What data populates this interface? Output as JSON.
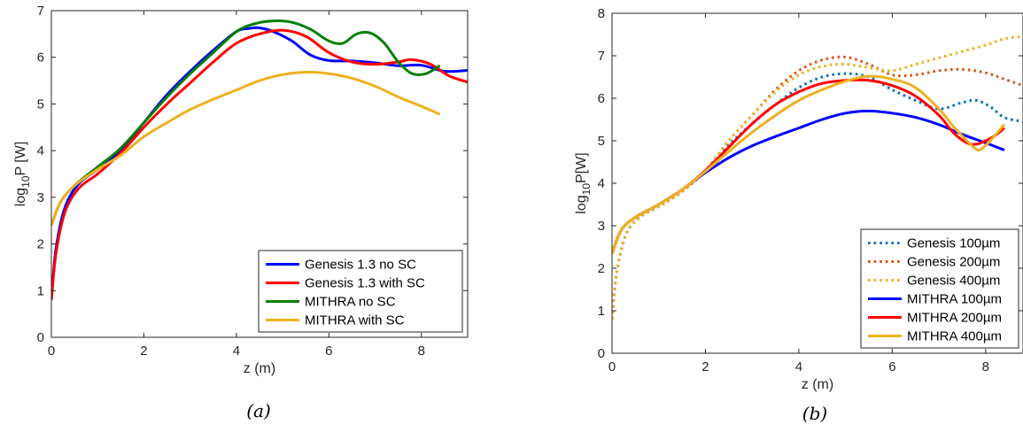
{
  "chart_data": [
    {
      "type": "line",
      "caption": "(a)",
      "xlabel": "z (m)",
      "ylabel_main": "log",
      "ylabel_sub": "10",
      "ylabel_tail": "P [W]",
      "xlim": [
        0,
        9
      ],
      "ylim": [
        0,
        7
      ],
      "xticks": [
        0,
        2,
        4,
        6,
        8
      ],
      "yticks": [
        0,
        1,
        2,
        3,
        4,
        5,
        6,
        7
      ],
      "legend_position": "bottom-right",
      "series": [
        {
          "name": "Genesis 1.3 no SC",
          "color": "#0000ff",
          "dash": "solid",
          "x": [
            0,
            0.1,
            0.3,
            0.6,
            1.0,
            1.5,
            2.0,
            2.5,
            3.0,
            3.5,
            4.0,
            4.3,
            4.5,
            4.8,
            5.2,
            5.6,
            6.0,
            6.5,
            7.0,
            7.5,
            8.0,
            8.5,
            9.0
          ],
          "y": [
            0.8,
            1.9,
            2.8,
            3.3,
            3.6,
            4.0,
            4.6,
            5.2,
            5.7,
            6.15,
            6.55,
            6.62,
            6.63,
            6.55,
            6.35,
            6.05,
            5.93,
            5.92,
            5.88,
            5.82,
            5.83,
            5.7,
            5.72
          ]
        },
        {
          "name": "Genesis 1.3 with SC",
          "color": "#ff0000",
          "dash": "solid",
          "x": [
            0,
            0.1,
            0.3,
            0.6,
            1.0,
            1.5,
            2.0,
            2.5,
            3.0,
            3.5,
            4.0,
            4.5,
            5.0,
            5.5,
            6.0,
            6.5,
            7.0,
            7.5,
            7.8,
            8.2,
            8.6,
            9.0
          ],
          "y": [
            0.8,
            1.8,
            2.7,
            3.2,
            3.5,
            3.95,
            4.5,
            5.0,
            5.45,
            5.9,
            6.3,
            6.5,
            6.58,
            6.45,
            6.1,
            5.9,
            5.85,
            5.9,
            5.95,
            5.85,
            5.6,
            5.47
          ]
        },
        {
          "name": "MITHRA no SC",
          "color": "#008000",
          "dash": "solid",
          "x": [
            0,
            0.2,
            0.5,
            1.0,
            1.5,
            2.0,
            2.5,
            3.0,
            3.5,
            4.0,
            4.4,
            4.8,
            5.2,
            5.6,
            6.0,
            6.3,
            6.6,
            6.9,
            7.2,
            7.5,
            7.8,
            8.1,
            8.4
          ],
          "y": [
            2.4,
            2.9,
            3.25,
            3.65,
            4.05,
            4.6,
            5.15,
            5.65,
            6.1,
            6.55,
            6.72,
            6.78,
            6.75,
            6.6,
            6.35,
            6.3,
            6.5,
            6.52,
            6.3,
            5.9,
            5.65,
            5.65,
            5.82
          ]
        },
        {
          "name": "MITHRA with SC",
          "color": "#edb120",
          "dash": "solid",
          "x": [
            0,
            0.2,
            0.5,
            1.0,
            1.5,
            2.0,
            2.5,
            3.0,
            3.5,
            4.0,
            4.5,
            5.0,
            5.5,
            6.0,
            6.5,
            7.0,
            7.5,
            8.0,
            8.4
          ],
          "y": [
            2.4,
            2.9,
            3.25,
            3.6,
            3.9,
            4.3,
            4.6,
            4.88,
            5.1,
            5.3,
            5.5,
            5.63,
            5.68,
            5.65,
            5.55,
            5.38,
            5.15,
            4.95,
            4.78
          ]
        }
      ]
    },
    {
      "type": "line",
      "caption": "(b)",
      "xlabel": "z (m)",
      "ylabel_main": "log",
      "ylabel_sub": "10",
      "ylabel_tail": "P[W]",
      "xlim": [
        0,
        8.8
      ],
      "ylim": [
        0,
        8
      ],
      "xticks": [
        0,
        2,
        4,
        6,
        8
      ],
      "yticks": [
        0,
        1,
        2,
        3,
        4,
        5,
        6,
        7,
        8
      ],
      "legend_position": "bottom-right",
      "series": [
        {
          "name": "Genesis 100µm",
          "color": "#0072bd",
          "dash": "dotted",
          "x": [
            0,
            0.1,
            0.3,
            0.6,
            1.0,
            1.5,
            2.0,
            2.5,
            3.0,
            3.5,
            4.0,
            4.5,
            5.0,
            5.5,
            6.0,
            6.5,
            7.0,
            7.5,
            7.8,
            8.1,
            8.4,
            8.8
          ],
          "y": [
            0.8,
            1.9,
            2.8,
            3.2,
            3.45,
            3.8,
            4.3,
            4.9,
            5.4,
            5.85,
            6.25,
            6.5,
            6.58,
            6.5,
            6.2,
            5.95,
            5.75,
            5.9,
            5.95,
            5.8,
            5.55,
            5.45
          ]
        },
        {
          "name": "Genesis 200µm",
          "color": "#d95319",
          "dash": "dotted",
          "x": [
            0,
            0.1,
            0.3,
            0.6,
            1.0,
            1.5,
            2.0,
            2.5,
            3.0,
            3.5,
            4.0,
            4.5,
            5.0,
            5.5,
            6.0,
            6.5,
            7.0,
            7.5,
            8.0,
            8.4,
            8.8
          ],
          "y": [
            0.8,
            1.9,
            2.8,
            3.2,
            3.45,
            3.8,
            4.3,
            5.0,
            5.6,
            6.2,
            6.65,
            6.9,
            6.97,
            6.8,
            6.55,
            6.55,
            6.65,
            6.68,
            6.6,
            6.45,
            6.3
          ]
        },
        {
          "name": "Genesis 400µm",
          "color": "#edb120",
          "dash": "dotted",
          "x": [
            0,
            0.1,
            0.3,
            0.6,
            1.0,
            1.5,
            2.0,
            2.5,
            3.0,
            3.5,
            4.0,
            4.5,
            5.0,
            5.5,
            6.0,
            6.5,
            7.0,
            7.5,
            8.0,
            8.4,
            8.8
          ],
          "y": [
            0.8,
            1.9,
            2.8,
            3.2,
            3.45,
            3.8,
            4.3,
            5.0,
            5.6,
            6.15,
            6.55,
            6.75,
            6.8,
            6.72,
            6.65,
            6.8,
            6.95,
            7.1,
            7.25,
            7.4,
            7.45
          ]
        },
        {
          "name": "MITHRA 100µm",
          "color": "#0000ff",
          "dash": "solid",
          "x": [
            0,
            0.2,
            0.5,
            1.0,
            1.5,
            2.0,
            2.5,
            3.0,
            3.5,
            4.0,
            4.5,
            5.0,
            5.5,
            6.0,
            6.5,
            7.0,
            7.5,
            8.0,
            8.4
          ],
          "y": [
            2.35,
            2.9,
            3.2,
            3.5,
            3.85,
            4.25,
            4.6,
            4.88,
            5.1,
            5.3,
            5.5,
            5.65,
            5.7,
            5.65,
            5.55,
            5.38,
            5.15,
            4.95,
            4.78
          ]
        },
        {
          "name": "MITHRA 200µm",
          "color": "#ff0000",
          "dash": "solid",
          "x": [
            0,
            0.2,
            0.5,
            1.0,
            1.5,
            2.0,
            2.5,
            3.0,
            3.5,
            4.0,
            4.5,
            5.0,
            5.5,
            6.0,
            6.5,
            7.0,
            7.3,
            7.6,
            7.8,
            8.0,
            8.2,
            8.4
          ],
          "y": [
            2.35,
            2.9,
            3.2,
            3.5,
            3.85,
            4.3,
            4.85,
            5.4,
            5.85,
            6.15,
            6.35,
            6.42,
            6.42,
            6.3,
            6.05,
            5.6,
            5.2,
            4.95,
            4.92,
            5.0,
            5.12,
            5.3
          ]
        },
        {
          "name": "MITHRA 400µm",
          "color": "#edb120",
          "dash": "solid",
          "x": [
            0,
            0.2,
            0.5,
            1.0,
            1.5,
            2.0,
            2.5,
            3.0,
            3.5,
            4.0,
            4.5,
            5.0,
            5.5,
            6.0,
            6.5,
            7.0,
            7.3,
            7.6,
            7.8,
            7.9,
            8.1,
            8.4
          ],
          "y": [
            2.35,
            2.9,
            3.2,
            3.5,
            3.85,
            4.28,
            4.75,
            5.2,
            5.6,
            5.95,
            6.2,
            6.4,
            6.52,
            6.45,
            6.25,
            5.75,
            5.35,
            5.0,
            4.8,
            4.8,
            5.0,
            5.38
          ]
        }
      ]
    }
  ]
}
